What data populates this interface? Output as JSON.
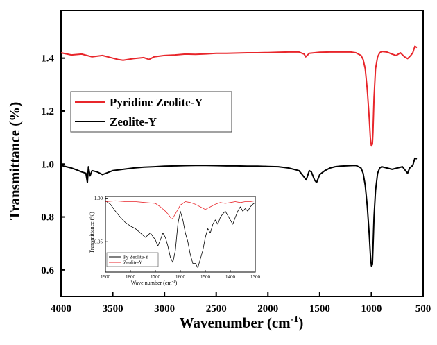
{
  "chart_data": [
    {
      "type": "line",
      "title": "",
      "xlabel": "Wavenumber (cm-1)",
      "xlabel_main": "Wavenumber (cm",
      "xlabel_sup": "-1",
      "xlabel_close": ")",
      "ylabel": "Transmittance (%)",
      "xlim": [
        4000,
        500
      ],
      "ylim": [
        0.5,
        1.58
      ],
      "x_reversed": true,
      "xticks": [
        "4000",
        "3500",
        "3000",
        "2500",
        "2000",
        "1500",
        "1000",
        "500"
      ],
      "xtick_values": [
        4000,
        3500,
        3000,
        2500,
        2000,
        1500,
        1000,
        500
      ],
      "yticks": [
        "0.6",
        "0.8",
        "1.0",
        "1.2",
        "1.4"
      ],
      "ytick_values": [
        0.6,
        0.8,
        1.0,
        1.2,
        1.4
      ],
      "legend_position": "center-left",
      "series": [
        {
          "name": "Pyridine Zeolite-Y",
          "color": "#e8262b",
          "x": [
            4000,
            3900,
            3800,
            3700,
            3600,
            3500,
            3450,
            3400,
            3300,
            3200,
            3150,
            3100,
            3000,
            2900,
            2800,
            2700,
            2600,
            2500,
            2400,
            2300,
            2200,
            2100,
            2000,
            1900,
            1800,
            1700,
            1650,
            1635,
            1600,
            1500,
            1400,
            1300,
            1200,
            1150,
            1100,
            1080,
            1060,
            1040,
            1020,
            1010,
            1000,
            990,
            985,
            975,
            960,
            940,
            920,
            900,
            850,
            800,
            760,
            720,
            680,
            650,
            620,
            600,
            580,
            560
          ],
          "y": [
            1.42,
            1.412,
            1.415,
            1.405,
            1.41,
            1.4,
            1.395,
            1.392,
            1.398,
            1.402,
            1.395,
            1.405,
            1.41,
            1.412,
            1.415,
            1.414,
            1.416,
            1.418,
            1.418,
            1.419,
            1.42,
            1.42,
            1.421,
            1.422,
            1.423,
            1.423,
            1.415,
            1.405,
            1.418,
            1.422,
            1.423,
            1.423,
            1.423,
            1.42,
            1.41,
            1.395,
            1.36,
            1.28,
            1.17,
            1.1,
            1.068,
            1.075,
            1.12,
            1.25,
            1.36,
            1.405,
            1.42,
            1.425,
            1.423,
            1.415,
            1.41,
            1.42,
            1.405,
            1.398,
            1.41,
            1.42,
            1.445,
            1.44
          ]
        },
        {
          "name": "Zeolite-Y",
          "color": "#000000",
          "x": [
            4000,
            3950,
            3900,
            3850,
            3800,
            3760,
            3745,
            3735,
            3720,
            3700,
            3650,
            3600,
            3500,
            3400,
            3300,
            3200,
            3100,
            3000,
            2900,
            2800,
            2700,
            2600,
            2500,
            2400,
            2300,
            2200,
            2100,
            2000,
            1900,
            1800,
            1700,
            1650,
            1630,
            1600,
            1580,
            1550,
            1530,
            1500,
            1450,
            1400,
            1350,
            1300,
            1250,
            1200,
            1150,
            1100,
            1080,
            1060,
            1040,
            1020,
            1010,
            1000,
            990,
            985,
            975,
            960,
            940,
            920,
            900,
            850,
            800,
            750,
            700,
            670,
            650,
            630,
            600,
            580,
            560
          ],
          "y": [
            0.995,
            0.99,
            0.985,
            0.978,
            0.97,
            0.965,
            0.93,
            0.99,
            0.955,
            0.975,
            0.97,
            0.96,
            0.975,
            0.98,
            0.985,
            0.988,
            0.99,
            0.992,
            0.993,
            0.994,
            0.995,
            0.995,
            0.994,
            0.993,
            0.993,
            0.992,
            0.992,
            0.991,
            0.99,
            0.985,
            0.975,
            0.95,
            0.94,
            0.975,
            0.97,
            0.94,
            0.93,
            0.96,
            0.975,
            0.985,
            0.99,
            0.992,
            0.993,
            0.994,
            0.995,
            0.985,
            0.965,
            0.92,
            0.84,
            0.73,
            0.66,
            0.615,
            0.62,
            0.68,
            0.8,
            0.9,
            0.965,
            0.985,
            0.99,
            0.985,
            0.98,
            0.985,
            0.99,
            0.975,
            0.965,
            0.985,
            0.995,
            1.022,
            1.02
          ]
        }
      ]
    },
    {
      "type": "line",
      "title": "",
      "xlabel": "Wave number (cm-1)",
      "xlabel_main": "Wave number (cm",
      "xlabel_sup": "-1",
      "xlabel_close": ")",
      "ylabel": "Transmittance (%)",
      "xlim": [
        1900,
        1300
      ],
      "ylim": [
        0.915,
        1.002
      ],
      "x_reversed": true,
      "xticks": [
        "1900",
        "1800",
        "1700",
        "1600",
        "1500",
        "1400",
        "1300"
      ],
      "xtick_values": [
        1900,
        1800,
        1700,
        1600,
        1500,
        1400,
        1300
      ],
      "yticks": [
        "0.95",
        "1.00"
      ],
      "ytick_values": [
        0.95,
        1.0
      ],
      "legend_position": "bottom-left",
      "series": [
        {
          "name": "Py Zeolite-Y",
          "color": "#000000",
          "x": [
            1900,
            1880,
            1860,
            1840,
            1820,
            1800,
            1780,
            1760,
            1740,
            1720,
            1700,
            1690,
            1680,
            1670,
            1660,
            1650,
            1640,
            1630,
            1620,
            1610,
            1600,
            1590,
            1580,
            1570,
            1560,
            1550,
            1540,
            1530,
            1520,
            1510,
            1500,
            1490,
            1480,
            1470,
            1460,
            1450,
            1440,
            1430,
            1420,
            1410,
            1400,
            1390,
            1380,
            1370,
            1360,
            1350,
            1340,
            1330,
            1320,
            1310,
            1300
          ],
          "y": [
            0.997,
            0.993,
            0.985,
            0.978,
            0.972,
            0.968,
            0.965,
            0.96,
            0.955,
            0.96,
            0.952,
            0.945,
            0.952,
            0.96,
            0.955,
            0.945,
            0.932,
            0.926,
            0.94,
            0.97,
            0.985,
            0.975,
            0.96,
            0.95,
            0.935,
            0.925,
            0.925,
            0.92,
            0.93,
            0.94,
            0.955,
            0.965,
            0.96,
            0.97,
            0.975,
            0.97,
            0.978,
            0.982,
            0.985,
            0.98,
            0.975,
            0.97,
            0.978,
            0.985,
            0.99,
            0.985,
            0.988,
            0.985,
            0.99,
            0.993,
            0.995
          ]
        },
        {
          "name": "Zeolite-Y",
          "color": "#e8262b",
          "x": [
            1900,
            1860,
            1820,
            1780,
            1740,
            1700,
            1680,
            1660,
            1650,
            1640,
            1635,
            1630,
            1620,
            1600,
            1580,
            1560,
            1540,
            1520,
            1500,
            1480,
            1460,
            1440,
            1420,
            1400,
            1380,
            1360,
            1340,
            1320,
            1300
          ],
          "y": [
            0.996,
            0.997,
            0.996,
            0.996,
            0.995,
            0.994,
            0.99,
            0.985,
            0.982,
            0.978,
            0.976,
            0.977,
            0.982,
            0.992,
            0.996,
            0.995,
            0.993,
            0.99,
            0.987,
            0.99,
            0.993,
            0.995,
            0.994,
            0.995,
            0.996,
            0.995,
            0.996,
            0.996,
            0.997
          ]
        }
      ]
    }
  ]
}
